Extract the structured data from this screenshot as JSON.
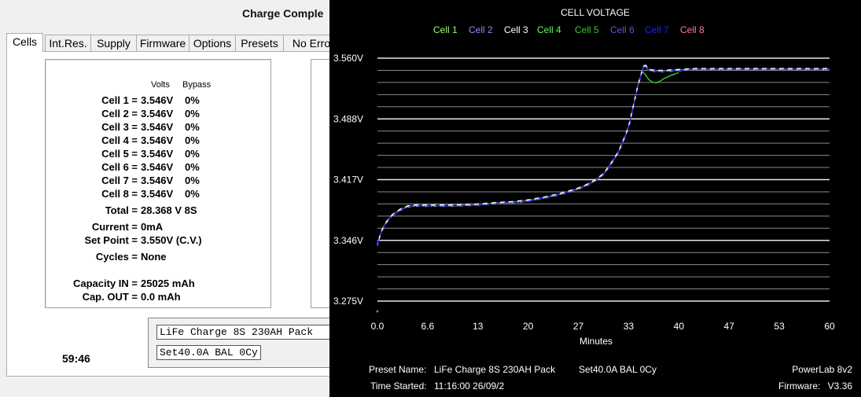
{
  "status_title": "Charge Comple",
  "tabs": [
    "Cells",
    "Int.Res.",
    "Supply",
    "Firmware",
    "Options",
    "Presets",
    "No Erro"
  ],
  "cells_panel": {
    "volts_header": "Volts",
    "bypass_header": "Bypass",
    "cells": [
      {
        "label": "Cell 1 =",
        "volts": "3.546V",
        "bypass": "0%"
      },
      {
        "label": "Cell 2 =",
        "volts": "3.546V",
        "bypass": "0%"
      },
      {
        "label": "Cell 3 =",
        "volts": "3.546V",
        "bypass": "0%"
      },
      {
        "label": "Cell 4 =",
        "volts": "3.546V",
        "bypass": "0%"
      },
      {
        "label": "Cell 5 =",
        "volts": "3.546V",
        "bypass": "0%"
      },
      {
        "label": "Cell 6 =",
        "volts": "3.546V",
        "bypass": "0%"
      },
      {
        "label": "Cell 7 =",
        "volts": "3.546V",
        "bypass": "0%"
      },
      {
        "label": "Cell 8 =",
        "volts": "3.546V",
        "bypass": "0%"
      }
    ],
    "total_label": "Total =",
    "total_value": "28.368 V  8S",
    "current_label": "Current =",
    "current_value": "0mA",
    "setpoint_label": "Set Point =",
    "setpoint_value": "3.550V  (C.V.)",
    "cycles_label": "Cycles =",
    "cycles_value": "None",
    "capin_label": "Capacity IN =",
    "capin_value": "25025 mAh",
    "capout_label": "Cap. OUT =",
    "capout_value": "0.0 mAh"
  },
  "preset_line1": "LiFe Charge 8S 230AH Pack",
  "preset_line2": "Set40.0A BAL 0Cy",
  "timer": "59:46",
  "chart_data": {
    "type": "line",
    "title": "CELL VOLTAGE",
    "xlabel": "Minutes",
    "ylabel": "",
    "x_ticks": [
      "0.0",
      "6.6",
      "13",
      "20",
      "27",
      "33",
      "40",
      "47",
      "53",
      "60"
    ],
    "x_range": [
      0,
      60
    ],
    "y_ticks": [
      "3.560V",
      "3.488V",
      "3.417V",
      "3.346V",
      "3.275V"
    ],
    "y_range": [
      3.275,
      3.56
    ],
    "grid": true,
    "legend_position": "top",
    "series": [
      {
        "name": "Cell 1",
        "color": "#9bff6a"
      },
      {
        "name": "Cell 2",
        "color": "#8c8cff"
      },
      {
        "name": "Cell 3",
        "color": "#ffffff"
      },
      {
        "name": "Cell 4",
        "color": "#5dff5d"
      },
      {
        "name": "Cell 5",
        "color": "#33cc33"
      },
      {
        "name": "Cell 6",
        "color": "#5a5acc"
      },
      {
        "name": "Cell 7",
        "color": "#2222ff"
      },
      {
        "name": "Cell 8",
        "color": "#ff7aa8"
      }
    ],
    "curve": {
      "x": [
        0,
        0.5,
        1,
        1.5,
        2,
        3,
        4,
        5,
        6,
        8,
        10,
        13,
        16,
        18,
        20,
        22,
        24,
        26,
        27,
        28,
        29,
        30,
        31,
        32,
        33,
        33.5,
        34,
        34.5,
        35,
        35.3,
        35.6,
        36,
        37,
        38,
        40,
        42,
        45,
        50,
        55,
        60
      ],
      "y": [
        3.341,
        3.356,
        3.365,
        3.371,
        3.376,
        3.382,
        3.386,
        3.387,
        3.387,
        3.387,
        3.387,
        3.388,
        3.39,
        3.391,
        3.393,
        3.396,
        3.4,
        3.405,
        3.408,
        3.412,
        3.417,
        3.424,
        3.436,
        3.45,
        3.471,
        3.485,
        3.505,
        3.525,
        3.541,
        3.55,
        3.551,
        3.546,
        3.545,
        3.545,
        3.546,
        3.547,
        3.547,
        3.547,
        3.547,
        3.547
      ]
    },
    "dip_curve": {
      "x": [
        35.2,
        35.6,
        36,
        36.5,
        37,
        37.5,
        38,
        39,
        40
      ],
      "y": [
        3.544,
        3.54,
        3.535,
        3.532,
        3.531,
        3.533,
        3.536,
        3.54,
        3.543
      ]
    }
  },
  "chart_footer": {
    "preset_label": "Preset Name:",
    "preset_value": "LiFe Charge 8S 230AH Pack",
    "preset_extra": "Set40.0A BAL 0Cy",
    "time_label": "Time Started:",
    "time_value": "11:16:00  26/09/2",
    "device": "PowerLab 8v2",
    "firmware_label": "Firmware:",
    "firmware_value": "V3.36"
  }
}
